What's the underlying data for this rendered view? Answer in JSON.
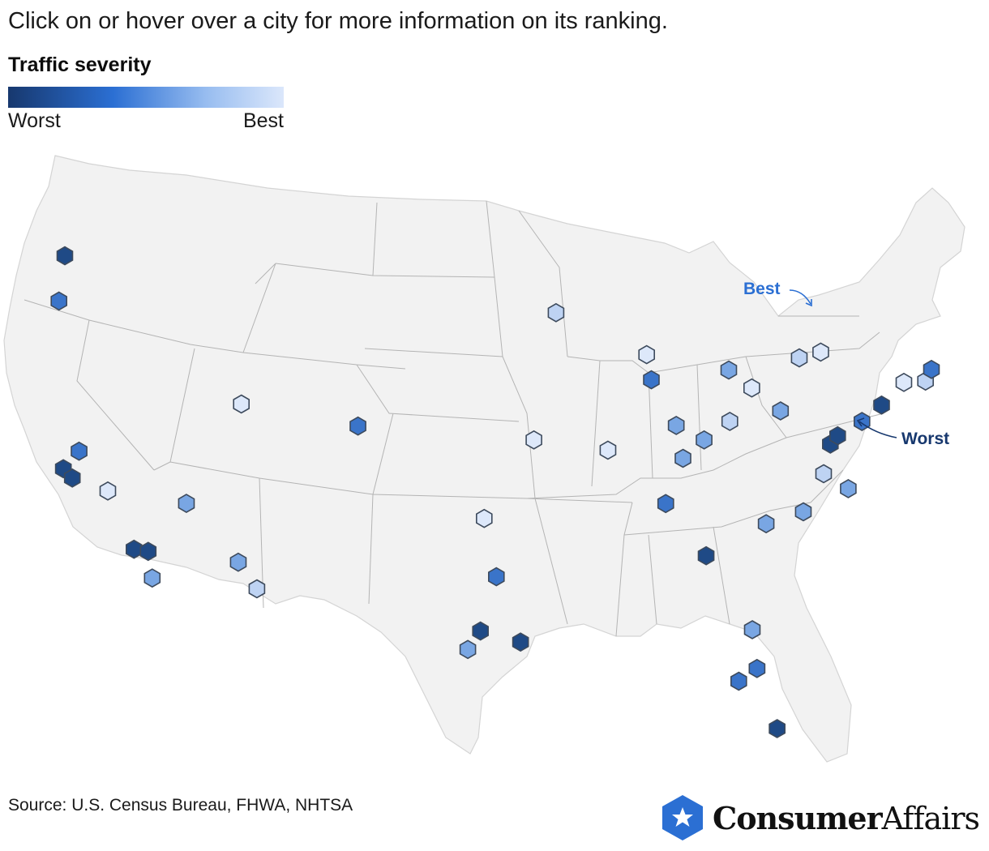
{
  "instruction": "Click on or hover over a city for more information on its ranking.",
  "legend": {
    "title": "Traffic severity",
    "low_label": "Worst",
    "high_label": "Best",
    "colors": [
      "#17386e",
      "#2b6fd3",
      "#98bdf0",
      "#dbe7fb"
    ]
  },
  "annotations": {
    "best": {
      "label": "Best",
      "color": "#2b6fd3"
    },
    "worst": {
      "label": "Worst",
      "color": "#17386e"
    }
  },
  "source": "Source: U.S. Census Bureau, FHWA, NHTSA",
  "brand": {
    "bold": "Consumer",
    "regular": "Affairs",
    "icon": "star-shield-icon",
    "color": "#2b6fd3"
  },
  "marker_colors": {
    "worst": "#1f4a86",
    "bad": "#3a74c9",
    "mid": "#79a6e3",
    "good": "#bed3f3",
    "best": "#dde8fa"
  },
  "cities": [
    {
      "name": "Seattle",
      "lon": -122.33,
      "lat": 47.61,
      "tier": "worst"
    },
    {
      "name": "Portland",
      "lon": -122.68,
      "lat": 45.52,
      "tier": "bad"
    },
    {
      "name": "Sacramento",
      "lon": -121.49,
      "lat": 38.58,
      "tier": "bad"
    },
    {
      "name": "San Francisco",
      "lon": -122.42,
      "lat": 37.77,
      "tier": "worst"
    },
    {
      "name": "San Jose",
      "lon": -121.89,
      "lat": 37.34,
      "tier": "worst"
    },
    {
      "name": "Fresno",
      "lon": -119.79,
      "lat": 36.74,
      "tier": "best"
    },
    {
      "name": "Los Angeles",
      "lon": -118.24,
      "lat": 34.05,
      "tier": "worst"
    },
    {
      "name": "Riverside",
      "lon": -117.4,
      "lat": 33.95,
      "tier": "worst"
    },
    {
      "name": "San Diego",
      "lon": -117.16,
      "lat": 32.72,
      "tier": "mid"
    },
    {
      "name": "Las Vegas",
      "lon": -115.14,
      "lat": 36.17,
      "tier": "mid"
    },
    {
      "name": "Phoenix",
      "lon": -112.07,
      "lat": 33.45,
      "tier": "mid"
    },
    {
      "name": "Tucson",
      "lon": -110.97,
      "lat": 32.22,
      "tier": "good"
    },
    {
      "name": "Salt Lake City",
      "lon": -111.89,
      "lat": 40.76,
      "tier": "best"
    },
    {
      "name": "Denver",
      "lon": -104.99,
      "lat": 39.74,
      "tier": "bad"
    },
    {
      "name": "Oklahoma City",
      "lon": -97.52,
      "lat": 35.47,
      "tier": "best"
    },
    {
      "name": "Dallas",
      "lon": -96.8,
      "lat": 32.78,
      "tier": "bad"
    },
    {
      "name": "Austin",
      "lon": -97.74,
      "lat": 30.27,
      "tier": "worst"
    },
    {
      "name": "San Antonio",
      "lon": -98.49,
      "lat": 29.42,
      "tier": "mid"
    },
    {
      "name": "Houston",
      "lon": -95.37,
      "lat": 29.76,
      "tier": "worst"
    },
    {
      "name": "Kansas City",
      "lon": -94.58,
      "lat": 39.1,
      "tier": "best"
    },
    {
      "name": "Minneapolis",
      "lon": -93.27,
      "lat": 44.98,
      "tier": "good"
    },
    {
      "name": "Milwaukee",
      "lon": -87.91,
      "lat": 43.04,
      "tier": "best"
    },
    {
      "name": "Chicago",
      "lon": -87.63,
      "lat": 41.88,
      "tier": "bad"
    },
    {
      "name": "St. Louis",
      "lon": -90.2,
      "lat": 38.63,
      "tier": "best"
    },
    {
      "name": "Indianapolis",
      "lon": -86.16,
      "lat": 39.77,
      "tier": "mid"
    },
    {
      "name": "Louisville",
      "lon": -85.76,
      "lat": 38.25,
      "tier": "mid"
    },
    {
      "name": "Cincinnati",
      "lon": -84.51,
      "lat": 39.1,
      "tier": "mid"
    },
    {
      "name": "Columbus",
      "lon": -82.99,
      "lat": 39.96,
      "tier": "good"
    },
    {
      "name": "Detroit",
      "lon": -83.05,
      "lat": 42.33,
      "tier": "mid"
    },
    {
      "name": "Cleveland",
      "lon": -81.69,
      "lat": 41.5,
      "tier": "best"
    },
    {
      "name": "Pittsburgh",
      "lon": -79.99,
      "lat": 40.44,
      "tier": "mid"
    },
    {
      "name": "Buffalo",
      "lon": -78.88,
      "lat": 42.89,
      "tier": "good"
    },
    {
      "name": "Rochester",
      "lon": -77.61,
      "lat": 43.16,
      "tier": "best"
    },
    {
      "name": "Nashville",
      "lon": -86.78,
      "lat": 36.16,
      "tier": "bad"
    },
    {
      "name": "Atlanta",
      "lon": -84.39,
      "lat": 33.75,
      "tier": "worst"
    },
    {
      "name": "Charlotte",
      "lon": -80.84,
      "lat": 35.23,
      "tier": "mid"
    },
    {
      "name": "Raleigh",
      "lon": -78.64,
      "lat": 35.78,
      "tier": "mid"
    },
    {
      "name": "Richmond",
      "lon": -77.44,
      "lat": 37.54,
      "tier": "good"
    },
    {
      "name": "Virginia Beach",
      "lon": -75.98,
      "lat": 36.85,
      "tier": "mid"
    },
    {
      "name": "Washington DC",
      "lon": -77.04,
      "lat": 38.91,
      "tier": "worst"
    },
    {
      "name": "Baltimore",
      "lon": -76.61,
      "lat": 39.29,
      "tier": "worst"
    },
    {
      "name": "Philadelphia",
      "lon": -75.17,
      "lat": 39.95,
      "tier": "bad"
    },
    {
      "name": "New York",
      "lon": -74.01,
      "lat": 40.71,
      "tier": "worst"
    },
    {
      "name": "Hartford",
      "lon": -72.69,
      "lat": 41.76,
      "tier": "best"
    },
    {
      "name": "Providence",
      "lon": -71.41,
      "lat": 41.82,
      "tier": "good"
    },
    {
      "name": "Boston",
      "lon": -71.06,
      "lat": 42.36,
      "tier": "bad"
    },
    {
      "name": "Jacksonville",
      "lon": -81.66,
      "lat": 30.33,
      "tier": "mid"
    },
    {
      "name": "Orlando",
      "lon": -81.38,
      "lat": 28.54,
      "tier": "bad"
    },
    {
      "name": "Tampa",
      "lon": -82.46,
      "lat": 27.95,
      "tier": "bad"
    },
    {
      "name": "Miami",
      "lon": -80.19,
      "lat": 25.76,
      "tier": "worst"
    }
  ]
}
